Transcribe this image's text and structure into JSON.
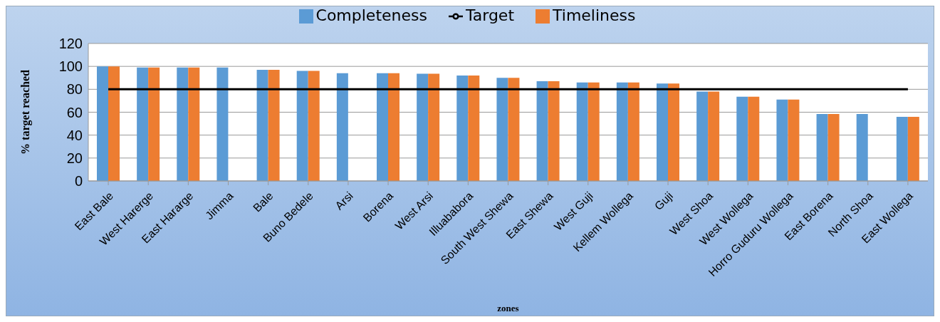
{
  "chart_data": {
    "type": "bar",
    "xlabel": "zones",
    "ylabel": "% target reached",
    "categories": [
      "East Bale",
      "West Harerge",
      "East Hararge",
      "Jimma",
      "Bale",
      "Buno Bedele",
      "Arsi",
      "Borena",
      "West Arsi",
      "Illuababora",
      "South West Shewa",
      "East Shewa",
      "West Guji",
      "Kellem Wollega",
      "Guji",
      "West Shoa",
      "West Wollega",
      "Horro Guduru Wollega",
      "East Borena",
      "North Shoa",
      "East Wollega"
    ],
    "series": [
      {
        "name": "Completeness",
        "color": "#5b9bd5",
        "values": [
          100,
          99,
          99,
          99,
          97,
          96,
          94,
          94,
          93.5,
          92,
          90,
          87,
          86,
          86,
          85,
          78,
          73.5,
          71,
          58.5,
          58.5,
          56
        ]
      },
      {
        "name": "Timeliness",
        "color": "#ed7d31",
        "values": [
          100,
          99,
          99,
          null,
          97,
          96,
          null,
          94,
          93.5,
          92,
          90,
          87,
          86,
          86,
          85,
          78,
          73.5,
          71,
          58.5,
          null,
          56
        ]
      },
      {
        "name": "Target",
        "type": "line",
        "color": "#000000",
        "values": [
          80,
          80,
          80,
          80,
          80,
          80,
          80,
          80,
          80,
          80,
          80,
          80,
          80,
          80,
          80,
          80,
          80,
          80,
          80,
          80,
          80
        ]
      }
    ],
    "ylim": [
      0,
      120
    ],
    "yticks": [
      0,
      20,
      40,
      60,
      80,
      100,
      120
    ],
    "grid": "y",
    "legend": "top"
  }
}
